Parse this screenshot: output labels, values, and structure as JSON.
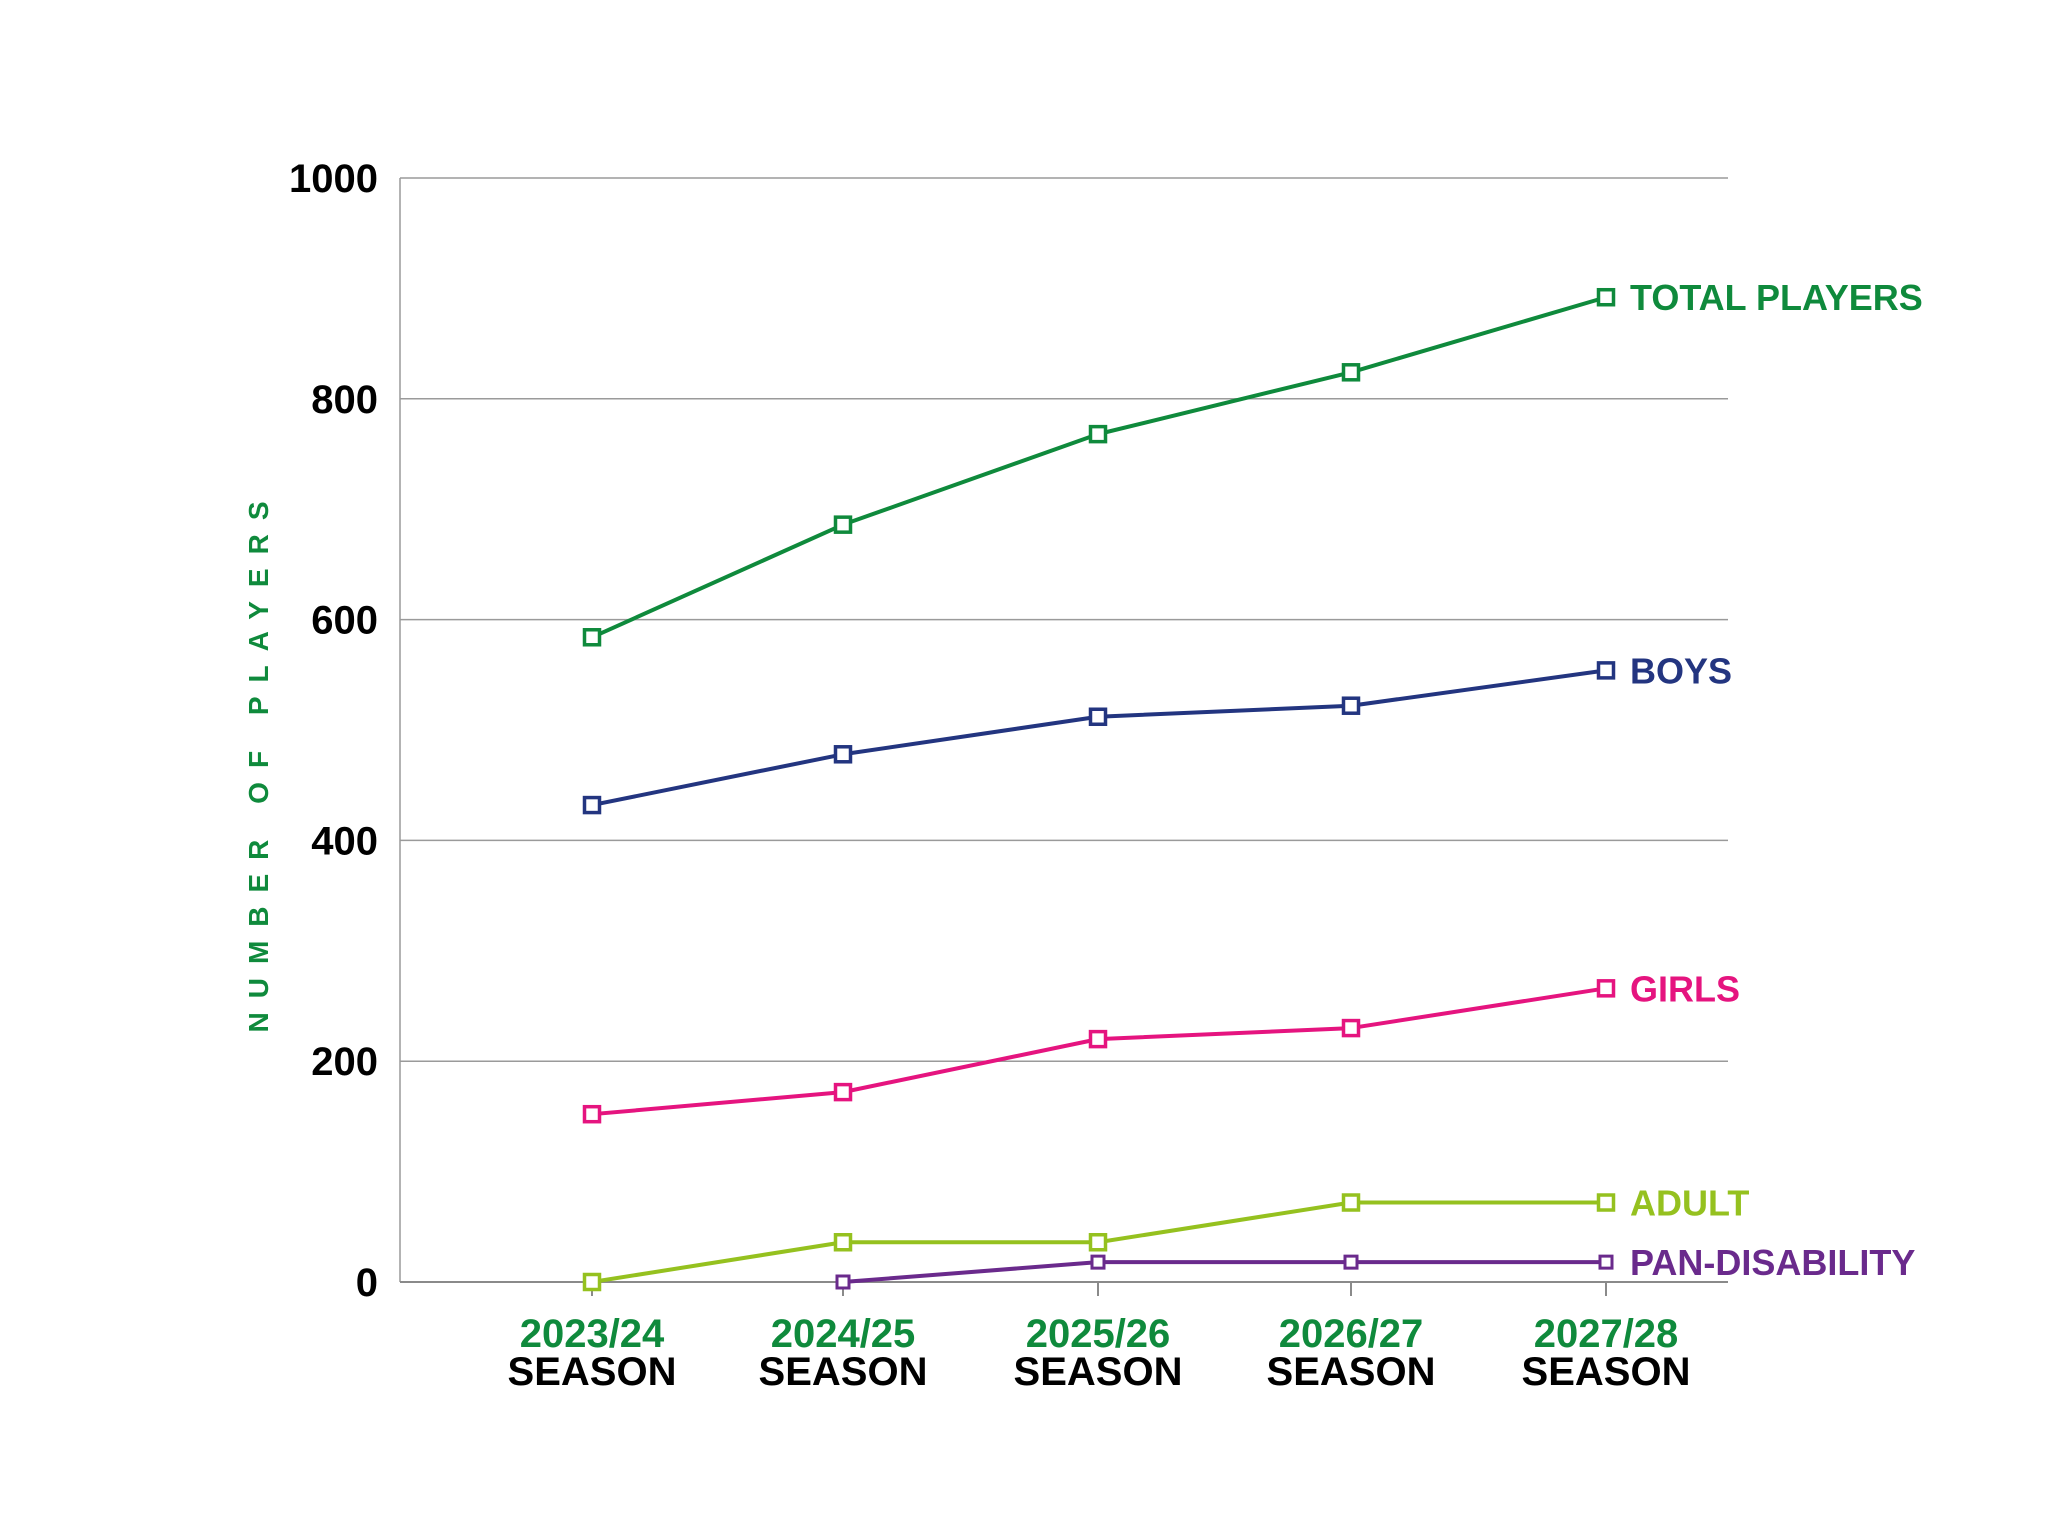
{
  "chart_data": {
    "type": "line",
    "title": "",
    "xlabel": "",
    "ylabel": "NUMBER OF PLAYERS",
    "ylim": [
      0,
      1000
    ],
    "yticks": [
      "0",
      "200",
      "400",
      "600",
      "800",
      "1000"
    ],
    "categories": [
      {
        "season": "2023/24",
        "suffix": "SEASON"
      },
      {
        "season": "2024/25",
        "suffix": "SEASON"
      },
      {
        "season": "2025/26",
        "suffix": "SEASON"
      },
      {
        "season": "2026/27",
        "suffix": "SEASON"
      },
      {
        "season": "2027/28",
        "suffix": "SEASON"
      }
    ],
    "series": [
      {
        "name": "TOTAL PLAYERS",
        "color": "#0f8a3c",
        "values": [
          584,
          686,
          768,
          824,
          892
        ]
      },
      {
        "name": "BOYS",
        "color": "#233580",
        "values": [
          432,
          478,
          512,
          522,
          554
        ]
      },
      {
        "name": "GIRLS",
        "color": "#e5147f",
        "values": [
          152,
          172,
          220,
          230,
          266
        ]
      },
      {
        "name": "ADULT",
        "color": "#95c11f",
        "values": [
          0,
          36,
          36,
          72,
          72
        ]
      },
      {
        "name": "PAN-DISABILITY",
        "color": "#6a2a8c",
        "values": [
          null,
          0,
          18,
          18,
          18
        ]
      }
    ],
    "category_label_color": "#0f8a3c",
    "ylabel_color": "#0f8a3c",
    "grid": true
  }
}
